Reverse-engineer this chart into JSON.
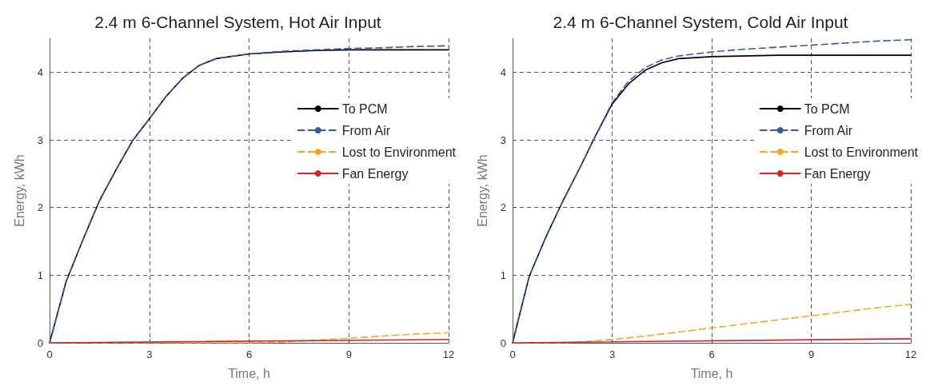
{
  "chart_data": [
    {
      "type": "line",
      "title": "2.4 m 6-Channel System, Hot Air Input",
      "xlabel": "Time, h",
      "ylabel": "Energy, kWh",
      "xlim": [
        0,
        12
      ],
      "xticks": [
        0,
        3,
        6,
        9,
        12
      ],
      "ylim": [
        0,
        4.5
      ],
      "yticks": [
        0,
        1,
        2,
        3,
        4
      ],
      "grid": true,
      "legend": "right",
      "marker": "none",
      "series": [
        {
          "name": "To PCM",
          "color": "#000000",
          "line_style": "solid",
          "x": [
            0,
            0.5,
            1,
            1.5,
            2,
            2.5,
            3,
            3.5,
            4,
            4.5,
            5,
            6,
            7,
            8,
            9,
            10,
            11,
            12
          ],
          "values": [
            0,
            0.91,
            1.52,
            2.1,
            2.56,
            2.99,
            3.31,
            3.64,
            3.91,
            4.1,
            4.2,
            4.27,
            4.3,
            4.32,
            4.33,
            4.33,
            4.33,
            4.33
          ]
        },
        {
          "name": "From Air",
          "color": "#3b55a8",
          "line_style": "dashed",
          "x": [
            0,
            0.5,
            1,
            1.5,
            2,
            2.5,
            3,
            3.5,
            4,
            4.5,
            5,
            6,
            7,
            8,
            9,
            10,
            11,
            12
          ],
          "values": [
            0,
            0.91,
            1.52,
            2.1,
            2.56,
            2.99,
            3.31,
            3.64,
            3.91,
            4.1,
            4.2,
            4.27,
            4.31,
            4.33,
            4.35,
            4.36,
            4.38,
            4.39
          ]
        },
        {
          "name": "Lost to Environment",
          "color": "#f5a623",
          "line_style": "dashed",
          "x": [
            0,
            6,
            7,
            8,
            9,
            10,
            11,
            12
          ],
          "values": [
            0,
            0,
            0.01,
            0.04,
            0.07,
            0.1,
            0.13,
            0.15
          ]
        },
        {
          "name": "Fan Energy",
          "color": "#d62728",
          "line_style": "solid",
          "x": [
            0,
            12
          ],
          "values": [
            0,
            0.05
          ]
        }
      ]
    },
    {
      "type": "line",
      "title": "2.4 m 6-Channel System, Cold Air Input",
      "xlabel": "Time, h",
      "ylabel": "Energy, kWh",
      "xlim": [
        0,
        12
      ],
      "xticks": [
        0,
        3,
        6,
        9,
        12
      ],
      "ylim": [
        0,
        4.5
      ],
      "yticks": [
        0,
        1,
        2,
        3,
        4
      ],
      "grid": true,
      "legend": "right",
      "marker": "none",
      "series": [
        {
          "name": "To PCM",
          "color": "#000000",
          "line_style": "solid",
          "x": [
            0,
            0.5,
            1,
            1.5,
            2,
            2.5,
            3,
            3.5,
            4,
            4.5,
            5,
            6,
            8,
            10,
            12
          ],
          "values": [
            0,
            0.98,
            1.56,
            2.08,
            2.56,
            3.06,
            3.53,
            3.83,
            4.03,
            4.14,
            4.2,
            4.23,
            4.25,
            4.25,
            4.25
          ]
        },
        {
          "name": "From Air",
          "color": "#3b55a8",
          "line_style": "dashed",
          "x": [
            0,
            0.5,
            1,
            1.5,
            2,
            2.5,
            3,
            3.5,
            4,
            4.5,
            5,
            6,
            7,
            8,
            9,
            10,
            11,
            12
          ],
          "values": [
            0,
            0.98,
            1.56,
            2.08,
            2.56,
            3.06,
            3.55,
            3.87,
            4.07,
            4.18,
            4.24,
            4.3,
            4.34,
            4.37,
            4.4,
            4.43,
            4.46,
            4.48
          ]
        },
        {
          "name": "Lost to Environment",
          "color": "#f5a623",
          "line_style": "dashed",
          "x": [
            0,
            1.5,
            2,
            3,
            4,
            5,
            6,
            7,
            8,
            9,
            10,
            11,
            12
          ],
          "values": [
            0,
            0,
            0.01,
            0.05,
            0.1,
            0.16,
            0.22,
            0.28,
            0.34,
            0.4,
            0.46,
            0.52,
            0.57
          ]
        },
        {
          "name": "Fan Energy",
          "color": "#d62728",
          "line_style": "solid",
          "x": [
            0,
            12
          ],
          "values": [
            0,
            0.06
          ]
        }
      ]
    }
  ]
}
